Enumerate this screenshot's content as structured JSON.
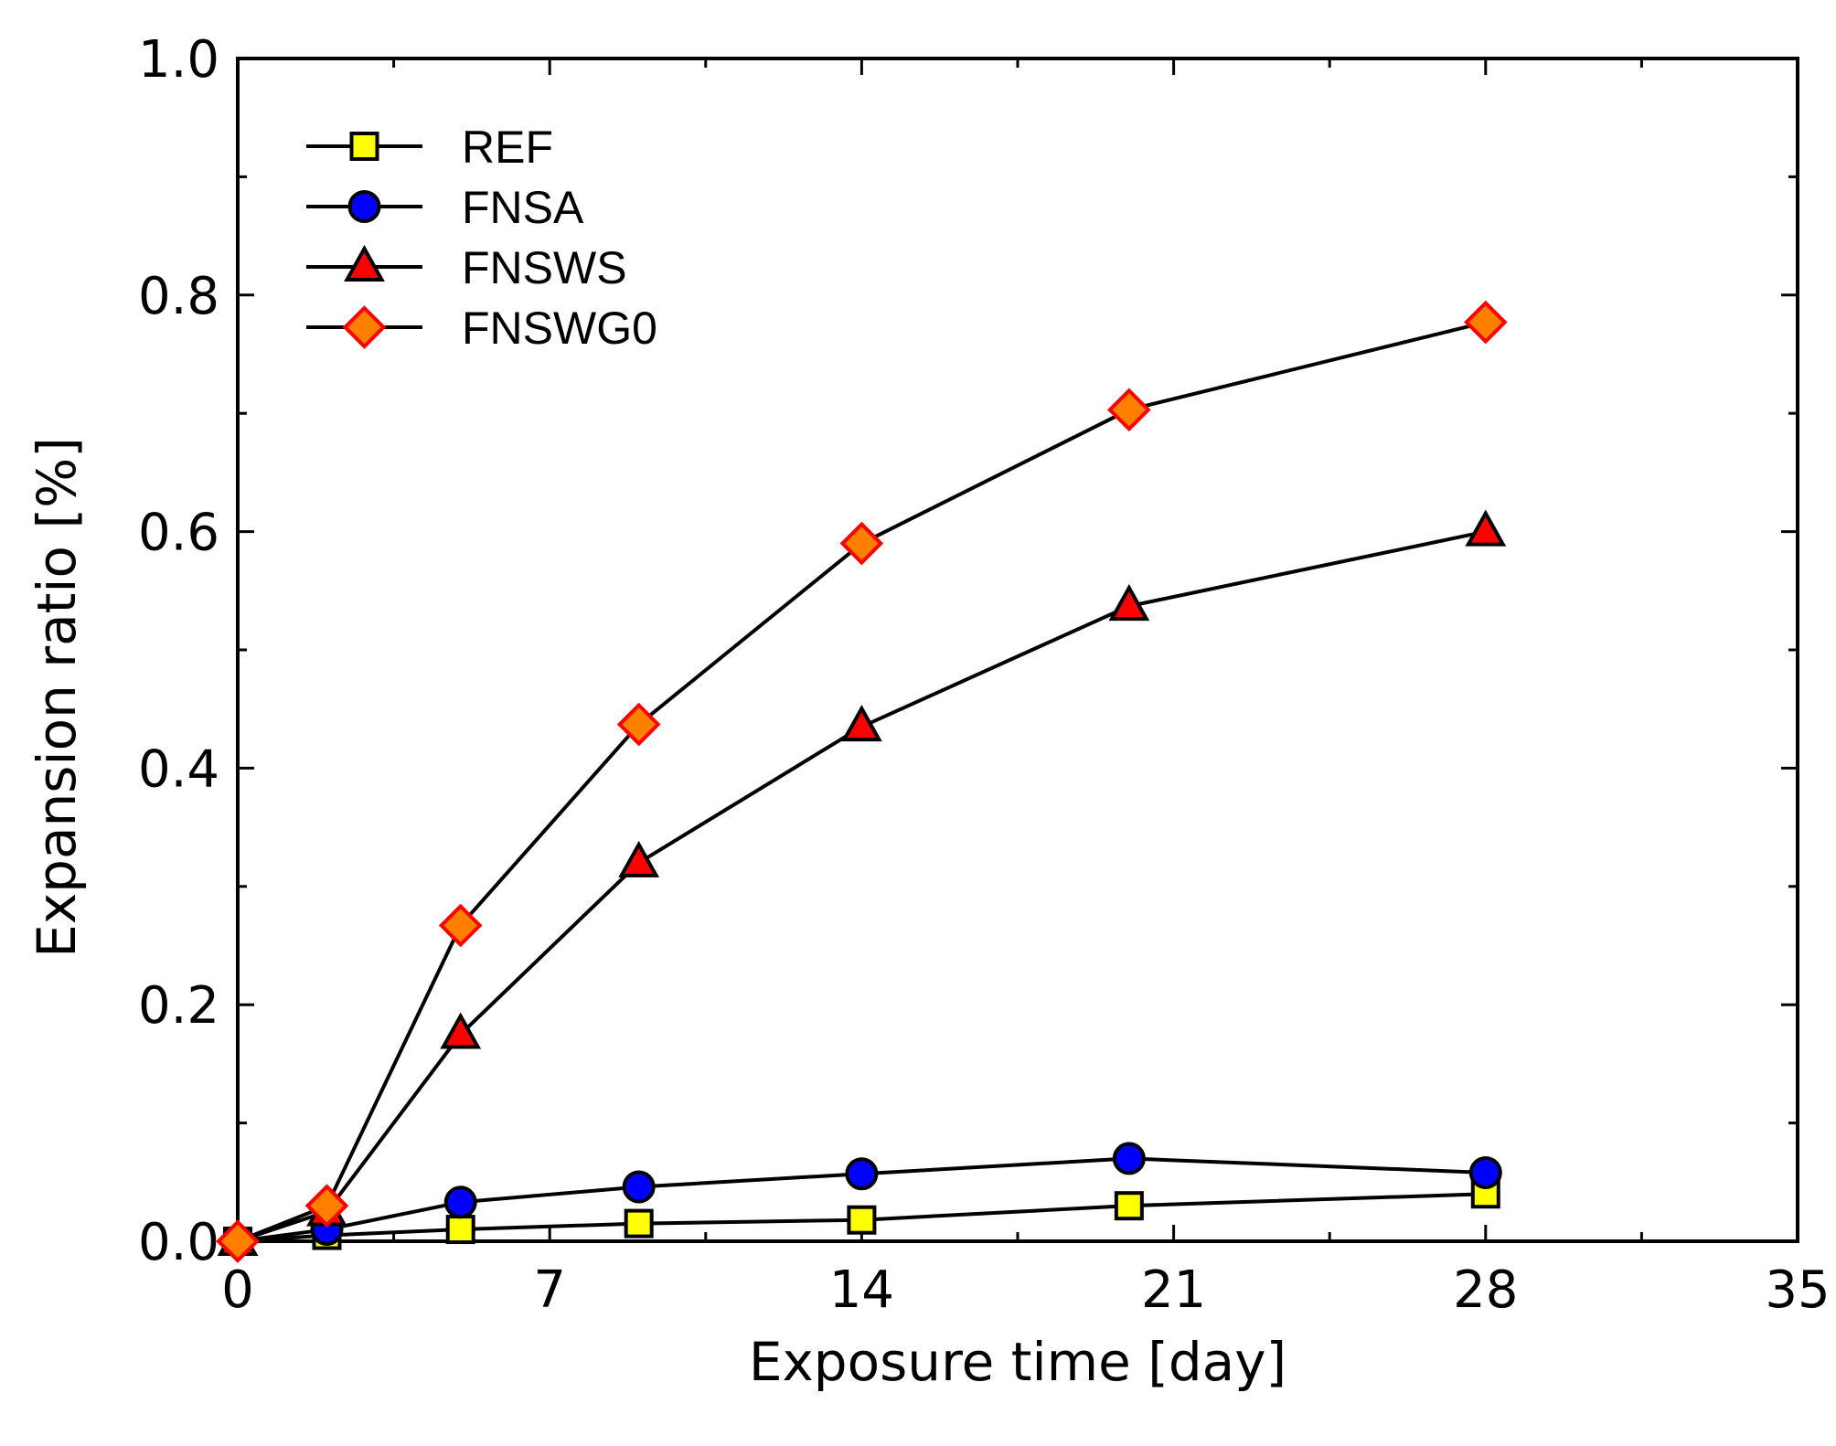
{
  "chart_data": {
    "type": "line",
    "title": "",
    "xlabel": "Exposure time [day]",
    "ylabel": "Expansion ratio [%]",
    "xlim": [
      0,
      35
    ],
    "ylim": [
      0,
      1.0
    ],
    "xticks": [
      0,
      7,
      14,
      21,
      28,
      35
    ],
    "xtick_labels": [
      "0",
      "7",
      "14",
      "21",
      "28",
      "35"
    ],
    "yticks": [
      0.0,
      0.2,
      0.4,
      0.6,
      0.8,
      1.0
    ],
    "ytick_labels": [
      "0.0",
      "0.2",
      "0.4",
      "0.6",
      "0.8",
      "1.0"
    ],
    "legend_position": "top-left",
    "series": [
      {
        "name": "REF",
        "marker": "square",
        "fill": "#ffff00",
        "x": [
          0,
          2,
          5,
          9,
          14,
          20,
          28
        ],
        "y": [
          0.0,
          0.005,
          0.01,
          0.015,
          0.018,
          0.03,
          0.04
        ]
      },
      {
        "name": "FNSA",
        "marker": "circle",
        "fill": "#0000ff",
        "x": [
          0,
          2,
          5,
          9,
          14,
          20,
          28
        ],
        "y": [
          0.0,
          0.01,
          0.033,
          0.046,
          0.057,
          0.07,
          0.058
        ]
      },
      {
        "name": "FNSWS",
        "marker": "triangle",
        "fill": "#ff0000",
        "x": [
          0,
          2,
          5,
          9,
          14,
          20,
          28
        ],
        "y": [
          0.0,
          0.025,
          0.175,
          0.32,
          0.435,
          0.537,
          0.6
        ]
      },
      {
        "name": "FNSWG0",
        "marker": "diamond",
        "fill": "#ff7f00",
        "stroke": "#ff0000",
        "x": [
          0,
          2,
          5,
          9,
          14,
          20,
          28
        ],
        "y": [
          0.0,
          0.03,
          0.267,
          0.437,
          0.59,
          0.703,
          0.777
        ]
      }
    ]
  }
}
